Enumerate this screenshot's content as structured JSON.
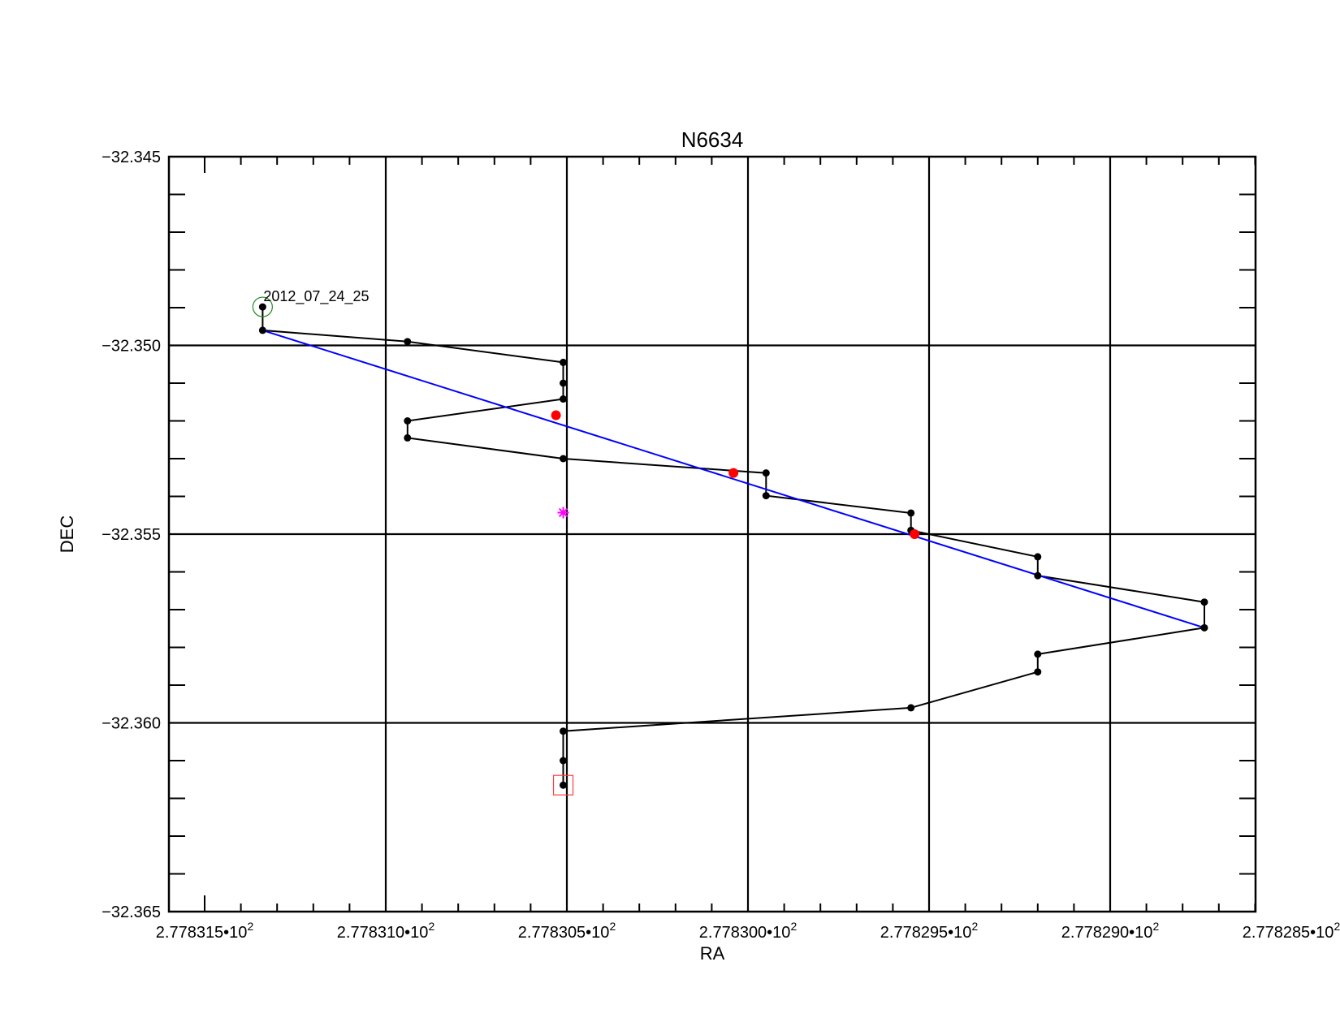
{
  "chart_data": {
    "type": "scatter",
    "title": "N6634",
    "xlabel": "RA",
    "ylabel": "DEC",
    "x_reversed": true,
    "xlim": [
      277.8316,
      277.8285
    ],
    "ylim": [
      -32.365,
      -32.345
    ],
    "x_major_ticks": [
      277.8315,
      277.831,
      277.8305,
      277.83,
      277.8295,
      277.829,
      277.8285
    ],
    "x_tick_labels": [
      {
        "mantissa": "2.778315",
        "sep": "•",
        "base": "10",
        "exp": "2"
      },
      {
        "mantissa": "2.778310",
        "sep": "•",
        "base": "10",
        "exp": "2"
      },
      {
        "mantissa": "2.778305",
        "sep": "•",
        "base": "10",
        "exp": "2"
      },
      {
        "mantissa": "2.778300",
        "sep": "•",
        "base": "10",
        "exp": "2"
      },
      {
        "mantissa": "2.778295",
        "sep": "•",
        "base": "10",
        "exp": "2"
      },
      {
        "mantissa": "2.778290",
        "sep": "•",
        "base": "10",
        "exp": "2"
      },
      {
        "mantissa": "2.778285",
        "sep": "•",
        "base": "10",
        "exp": "2"
      }
    ],
    "y_major_ticks": [
      -32.345,
      -32.35,
      -32.355,
      -32.36,
      -32.365
    ],
    "y_tick_labels": [
      "−32.345",
      "−32.350",
      "−32.355",
      "−32.360",
      "−32.365"
    ],
    "x_gridlines": [
      277.831,
      277.8305,
      277.83,
      277.8295,
      277.829
    ],
    "y_gridlines": [
      -32.35,
      -32.355,
      -32.36
    ],
    "series": [
      {
        "role": "track",
        "color": "#000000",
        "points": [
          [
            277.83134,
            -32.34898
          ],
          [
            277.83134,
            -32.3496
          ],
          [
            277.83094,
            -32.3499
          ],
          [
            277.83051,
            -32.35045
          ],
          [
            277.83051,
            -32.351
          ],
          [
            277.83051,
            -32.35142
          ],
          [
            277.83094,
            -32.352
          ],
          [
            277.83094,
            -32.35245
          ],
          [
            277.83051,
            -32.353
          ],
          [
            277.82995,
            -32.35338
          ],
          [
            277.82995,
            -32.35398
          ],
          [
            277.82955,
            -32.35444
          ],
          [
            277.82955,
            -32.3549
          ],
          [
            277.8292,
            -32.3556
          ],
          [
            277.8292,
            -32.3561
          ],
          [
            277.82874,
            -32.3568
          ],
          [
            277.82874,
            -32.35748
          ],
          [
            277.8292,
            -32.35818
          ],
          [
            277.8292,
            -32.35865
          ],
          [
            277.82955,
            -32.3596
          ],
          [
            277.83051,
            -32.36022
          ],
          [
            277.83051,
            -32.361
          ],
          [
            277.83051,
            -32.36165
          ]
        ]
      },
      {
        "role": "fit",
        "color": "#0000ff",
        "points": [
          [
            277.83134,
            -32.3496
          ],
          [
            277.82874,
            -32.35748
          ]
        ]
      },
      {
        "role": "highlighted",
        "color": "#ff0000",
        "points": [
          [
            277.83053,
            -32.35185
          ],
          [
            277.83004,
            -32.35338
          ],
          [
            277.82954,
            -32.355
          ]
        ]
      },
      {
        "role": "asterisk",
        "color": "#ff00ff",
        "points": [
          [
            277.83051,
            -32.35443
          ]
        ]
      }
    ],
    "start_marker": {
      "shape": "circle",
      "color": "#228b22",
      "point": [
        277.83134,
        -32.34898
      ]
    },
    "end_marker": {
      "shape": "square",
      "color": "#ff3b3b",
      "point": [
        277.83051,
        -32.36165
      ]
    },
    "annotations": [
      {
        "text": "2012_07_24_25",
        "point": [
          277.83134,
          -32.34898
        ]
      }
    ]
  }
}
